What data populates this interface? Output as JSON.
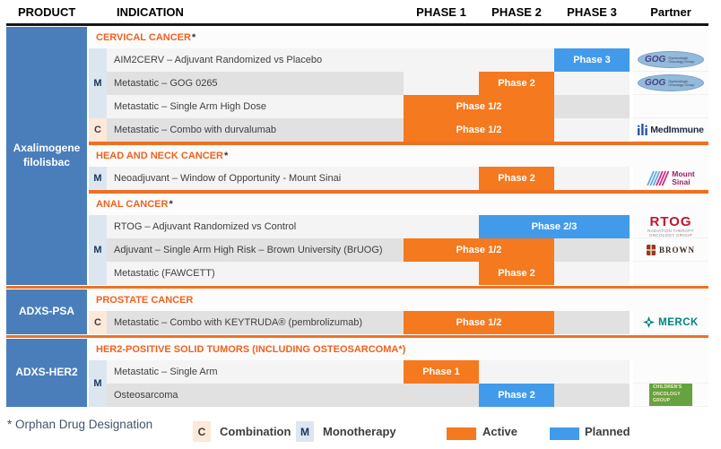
{
  "header": {
    "product": "PRODUCT",
    "indication": "INDICATION",
    "phase1": "PHASE 1",
    "phase2": "PHASE 2",
    "phase3": "PHASE 3",
    "partner": "Partner"
  },
  "palette": {
    "active": "#F5791F",
    "planned": "#429BEA",
    "product_bg": "#4A7EBB",
    "monotherapy_bg": "#DCE6F1",
    "combination_bg": "#FDE9D9",
    "category_text": "#F1611D",
    "divider": "#EE7123"
  },
  "groups": [
    {
      "product": "Axalimogene filolisbac",
      "sections": [
        {
          "title": "CERVICAL CANCER",
          "star": true,
          "rows": [
            {
              "marker": "",
              "indication": "AIM2CERV – Adjuvant Randomized vs Placebo",
              "ind_shade": "light",
              "phase_shade": "light",
              "bar": {
                "label": "Phase 3",
                "type": "planned",
                "start": 3,
                "span": 1
              },
              "partner": "gog"
            },
            {
              "marker": "M",
              "indication": "Metastatic – GOG 0265",
              "ind_shade": "dark",
              "phase_shade": "light",
              "bar": {
                "label": "Phase 2",
                "type": "active",
                "start": 2,
                "span": 1
              },
              "partner": "gog"
            },
            {
              "marker": "",
              "indication": "Metastatic – Single Arm High Dose",
              "ind_shade": "light",
              "phase_shade": "dark",
              "bar": {
                "label": "Phase 1/2",
                "type": "active",
                "start": 1,
                "span": 2
              },
              "partner": null
            },
            {
              "marker": "C",
              "indication": "Metastatic – Combo with durvalumab",
              "ind_shade": "dark",
              "phase_shade": "light",
              "bar": {
                "label": "Phase 1/2",
                "type": "active",
                "start": 1,
                "span": 2
              },
              "partner": "medimmune"
            }
          ]
        },
        {
          "title": "HEAD AND NECK CANCER",
          "star": true,
          "rows": [
            {
              "marker": "M",
              "indication": "Neoadjuvant – Window of Opportunity - Mount Sinai",
              "ind_shade": "light",
              "phase_shade": "light",
              "bar": {
                "label": "Phase 2",
                "type": "active",
                "start": 2,
                "span": 1
              },
              "partner": "mountsinai"
            }
          ]
        },
        {
          "title": "ANAL CANCER",
          "star": true,
          "rows": [
            {
              "marker": "",
              "indication": "RTOG – Adjuvant Randomized vs Control",
              "ind_shade": "light",
              "phase_shade": "light",
              "bar": {
                "label": "Phase 2/3",
                "type": "planned",
                "start": 2,
                "span": 2
              },
              "partner": "rtog"
            },
            {
              "marker": "M",
              "indication": "Adjuvant – Single Arm High Risk – Brown University (BrUOG)",
              "ind_shade": "dark",
              "phase_shade": "dark",
              "bar": {
                "label": "Phase 1/2",
                "type": "active",
                "start": 1,
                "span": 2
              },
              "partner": "brown"
            },
            {
              "marker": "",
              "indication": "Metastatic (FAWCETT)",
              "ind_shade": "light",
              "phase_shade": "light",
              "bar": {
                "label": "Phase 2",
                "type": "active",
                "start": 2,
                "span": 1
              },
              "partner": null
            }
          ]
        }
      ]
    },
    {
      "product": "ADXS-PSA",
      "sections": [
        {
          "title": "PROSTATE CANCER",
          "star": false,
          "rows": [
            {
              "marker": "C",
              "indication": "Metastatic – Combo with KEYTRUDA® (pembrolizumab)",
              "ind_shade": "dark",
              "phase_shade": "dark",
              "bar": {
                "label": "Phase 1/2",
                "type": "active",
                "start": 1,
                "span": 2
              },
              "partner": "merck"
            }
          ]
        }
      ]
    },
    {
      "product": "ADXS-HER2",
      "sections": [
        {
          "title": "HER2-POSITIVE SOLID TUMORS (INCLUDING OSTEOSARCOMA*)",
          "star": false,
          "shared_marker": "M",
          "rows": [
            {
              "indication": "Metastatic – Single Arm",
              "ind_shade": "light",
              "phase_shade": "light",
              "bar": {
                "label": "Phase 1",
                "type": "active",
                "start": 1,
                "span": 1
              },
              "partner": null
            },
            {
              "indication": "Osteosarcoma",
              "ind_shade": "dark",
              "phase_shade": "dark",
              "bar": {
                "label": "Phase 2",
                "type": "planned",
                "start": 2,
                "span": 1
              },
              "partner": "cog"
            }
          ]
        }
      ]
    }
  ],
  "partners": {
    "gog": {
      "abbr": "GOG",
      "name": "Gynecologic Oncology Group"
    },
    "medimmune": {
      "name": "MedImmune"
    },
    "mountsinai": {
      "lines": [
        "Mount",
        "Sinai"
      ]
    },
    "rtog": {
      "abbr": "RTOG",
      "sub1": "RADIATION THERAPY",
      "sub2": "ONCOLOGY GROUP"
    },
    "brown": {
      "name": "BROWN"
    },
    "merck": {
      "name": "MERCK"
    },
    "cog": {
      "lines": [
        "CHILDREN'S",
        "ONCOLOGY",
        "GROUP"
      ]
    }
  },
  "footer": {
    "footnote": "* Orphan Drug Designation",
    "legend": [
      {
        "symbol": "C",
        "label": "Combination"
      },
      {
        "symbol": "M",
        "label": "Monotherapy"
      },
      {
        "label": "Active"
      },
      {
        "label": "Planned"
      }
    ]
  }
}
